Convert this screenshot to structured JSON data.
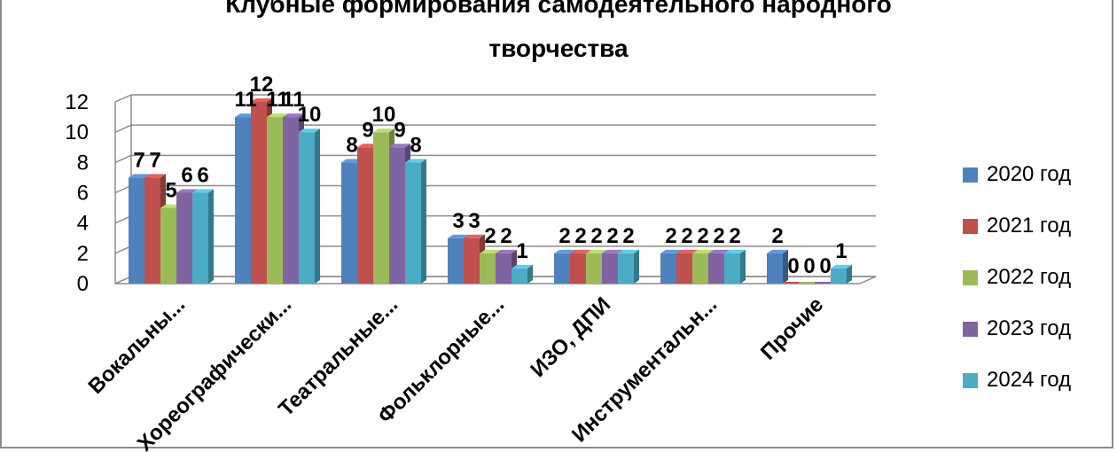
{
  "chart_data": {
    "type": "bar",
    "title_lines": [
      "Клубные формирования самодеятельного народного",
      "творчества"
    ],
    "categories": [
      "Вокальны...",
      "Хореографически...",
      "Театральные...",
      "Фольклорные...",
      "ИЗО, ДПИ",
      "Инструментальн...",
      "Прочие"
    ],
    "series": [
      {
        "name": "2020 год",
        "color": "#4f81bd",
        "values": [
          7,
          11,
          8,
          3,
          2,
          2,
          2
        ]
      },
      {
        "name": "2021 год",
        "color": "#c0504d",
        "values": [
          7,
          12,
          9,
          3,
          2,
          2,
          0
        ]
      },
      {
        "name": "2022 год",
        "color": "#9bbb59",
        "values": [
          5,
          11,
          10,
          2,
          2,
          2,
          0
        ]
      },
      {
        "name": "2023 год",
        "color": "#8064a2",
        "values": [
          6,
          11,
          9,
          2,
          2,
          2,
          0
        ]
      },
      {
        "name": "2024 год",
        "color": "#4bacc6",
        "values": [
          6,
          10,
          8,
          1,
          2,
          2,
          1
        ]
      }
    ],
    "ylim": [
      0,
      12
    ],
    "yticks": [
      "0",
      "2",
      "4",
      "6",
      "8",
      "10",
      "12"
    ],
    "grid": true,
    "legend_position": "right"
  }
}
